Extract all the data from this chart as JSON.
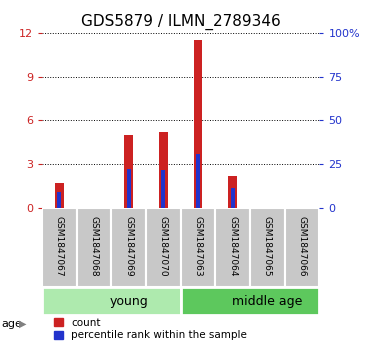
{
  "title": "GDS5879 / ILMN_2789346",
  "samples": [
    "GSM1847067",
    "GSM1847068",
    "GSM1847069",
    "GSM1847070",
    "GSM1847063",
    "GSM1847064",
    "GSM1847065",
    "GSM1847066"
  ],
  "red_values": [
    1.7,
    0.04,
    5.0,
    5.2,
    11.5,
    2.2,
    0.04,
    0.04
  ],
  "blue_values": [
    1.1,
    0.0,
    2.7,
    2.6,
    3.7,
    1.4,
    0.0,
    0.0
  ],
  "groups": [
    {
      "label": "young",
      "start": 0,
      "end": 4,
      "color": "#90EE90"
    },
    {
      "label": "middle age",
      "start": 4,
      "end": 8,
      "color": "#5DC85D"
    }
  ],
  "ylim_left": [
    0,
    12
  ],
  "ylim_right": [
    0,
    100
  ],
  "yticks_left": [
    0,
    3,
    6,
    9,
    12
  ],
  "yticks_right": [
    0,
    25,
    50,
    75,
    100
  ],
  "ytick_labels_right": [
    "0",
    "25",
    "50",
    "75",
    "100%"
  ],
  "bar_width": 0.25,
  "blue_bar_width": 0.25,
  "bar_color_red": "#CC2222",
  "bar_color_blue": "#2233CC",
  "grid_color": "black",
  "bg_color_samples": "#C8C8C8",
  "bg_color_groups_young": "#AEEAAE",
  "bg_color_groups_middle": "#5DC85D",
  "age_label": "age",
  "legend_count": "count",
  "legend_percentile": "percentile rank within the sample",
  "left_tick_color": "#CC2222",
  "right_tick_color": "#2233CC",
  "title_fontsize": 11,
  "tick_fontsize": 8,
  "sample_fontsize": 6.5,
  "group_fontsize": 9
}
